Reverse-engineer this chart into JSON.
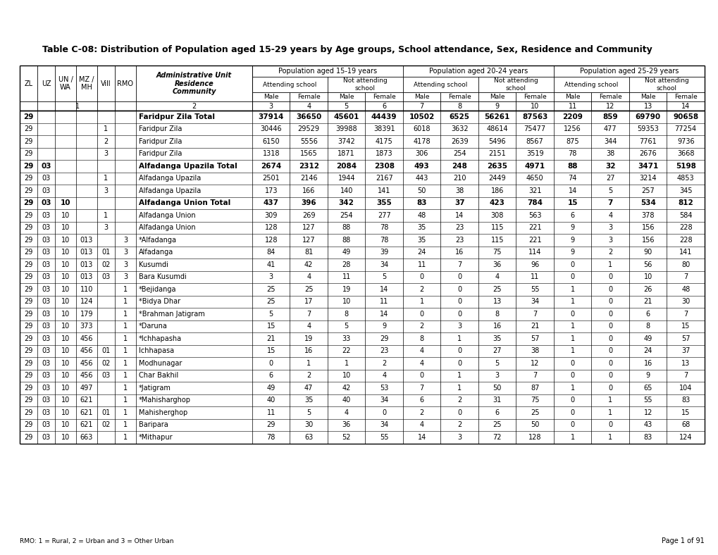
{
  "title": "Table C-08: Distribution of Population aged 15-29 years by Age groups, School attendance, Sex, Residence and Community",
  "footer_left": "RMO: 1 = Rural, 2 = Urban and 3 = Other Urban",
  "footer_right": "Page 1 of 91",
  "age_groups": [
    "Population aged 15-19 years",
    "Population aged 20-24 years",
    "Population aged 25-29 years"
  ],
  "col_numbers": [
    "3",
    "4",
    "5",
    "6",
    "7",
    "8",
    "9",
    "10",
    "11",
    "12",
    "13",
    "14"
  ],
  "rows": [
    {
      "zl": "29",
      "uz": "",
      "un": "",
      "mz": "",
      "vi": "",
      "rmo": "",
      "name": "Faridpur Zila Total",
      "bold": true,
      "data": [
        "37914",
        "36650",
        "45601",
        "44439",
        "10502",
        "6525",
        "56261",
        "87563",
        "2209",
        "859",
        "69790",
        "90658"
      ]
    },
    {
      "zl": "29",
      "uz": "",
      "un": "",
      "mz": "",
      "vi": "1",
      "rmo": "",
      "name": "Faridpur Zila",
      "bold": false,
      "data": [
        "30446",
        "29529",
        "39988",
        "38391",
        "6018",
        "3632",
        "48614",
        "75477",
        "1256",
        "477",
        "59353",
        "77254"
      ]
    },
    {
      "zl": "29",
      "uz": "",
      "un": "",
      "mz": "",
      "vi": "2",
      "rmo": "",
      "name": "Faridpur Zila",
      "bold": false,
      "data": [
        "6150",
        "5556",
        "3742",
        "4175",
        "4178",
        "2639",
        "5496",
        "8567",
        "875",
        "344",
        "7761",
        "9736"
      ]
    },
    {
      "zl": "29",
      "uz": "",
      "un": "",
      "mz": "",
      "vi": "3",
      "rmo": "",
      "name": "Faridpur Zila",
      "bold": false,
      "data": [
        "1318",
        "1565",
        "1871",
        "1873",
        "306",
        "254",
        "2151",
        "3519",
        "78",
        "38",
        "2676",
        "3668"
      ]
    },
    {
      "zl": "29",
      "uz": "03",
      "un": "",
      "mz": "",
      "vi": "",
      "rmo": "",
      "name": "Alfadanga Upazila Total",
      "bold": true,
      "data": [
        "2674",
        "2312",
        "2084",
        "2308",
        "493",
        "248",
        "2635",
        "4971",
        "88",
        "32",
        "3471",
        "5198"
      ]
    },
    {
      "zl": "29",
      "uz": "03",
      "un": "",
      "mz": "",
      "vi": "1",
      "rmo": "",
      "name": "Alfadanga Upazila",
      "bold": false,
      "data": [
        "2501",
        "2146",
        "1944",
        "2167",
        "443",
        "210",
        "2449",
        "4650",
        "74",
        "27",
        "3214",
        "4853"
      ]
    },
    {
      "zl": "29",
      "uz": "03",
      "un": "",
      "mz": "",
      "vi": "3",
      "rmo": "",
      "name": "Alfadanga Upazila",
      "bold": false,
      "data": [
        "173",
        "166",
        "140",
        "141",
        "50",
        "38",
        "186",
        "321",
        "14",
        "5",
        "257",
        "345"
      ]
    },
    {
      "zl": "29",
      "uz": "03",
      "un": "10",
      "mz": "",
      "vi": "",
      "rmo": "",
      "name": "Alfadanga Union Total",
      "bold": true,
      "data": [
        "437",
        "396",
        "342",
        "355",
        "83",
        "37",
        "423",
        "784",
        "15",
        "7",
        "534",
        "812"
      ]
    },
    {
      "zl": "29",
      "uz": "03",
      "un": "10",
      "mz": "",
      "vi": "1",
      "rmo": "",
      "name": "Alfadanga Union",
      "bold": false,
      "data": [
        "309",
        "269",
        "254",
        "277",
        "48",
        "14",
        "308",
        "563",
        "6",
        "4",
        "378",
        "584"
      ]
    },
    {
      "zl": "29",
      "uz": "03",
      "un": "10",
      "mz": "",
      "vi": "3",
      "rmo": "",
      "name": "Alfadanga Union",
      "bold": false,
      "data": [
        "128",
        "127",
        "88",
        "78",
        "35",
        "23",
        "115",
        "221",
        "9",
        "3",
        "156",
        "228"
      ]
    },
    {
      "zl": "29",
      "uz": "03",
      "un": "10",
      "mz": "013",
      "vi": "",
      "rmo": "3",
      "name": "*Alfadanga",
      "bold": false,
      "data": [
        "128",
        "127",
        "88",
        "78",
        "35",
        "23",
        "115",
        "221",
        "9",
        "3",
        "156",
        "228"
      ]
    },
    {
      "zl": "29",
      "uz": "03",
      "un": "10",
      "mz": "013",
      "vi": "01",
      "rmo": "3",
      "name": "Alfadanga",
      "bold": false,
      "data": [
        "84",
        "81",
        "49",
        "39",
        "24",
        "16",
        "75",
        "114",
        "9",
        "2",
        "90",
        "141"
      ]
    },
    {
      "zl": "29",
      "uz": "03",
      "un": "10",
      "mz": "013",
      "vi": "02",
      "rmo": "3",
      "name": "Kusumdi",
      "bold": false,
      "data": [
        "41",
        "42",
        "28",
        "34",
        "11",
        "7",
        "36",
        "96",
        "0",
        "1",
        "56",
        "80"
      ]
    },
    {
      "zl": "29",
      "uz": "03",
      "un": "10",
      "mz": "013",
      "vi": "03",
      "rmo": "3",
      "name": "Bara Kusumdi",
      "bold": false,
      "data": [
        "3",
        "4",
        "11",
        "5",
        "0",
        "0",
        "4",
        "11",
        "0",
        "0",
        "10",
        "7"
      ]
    },
    {
      "zl": "29",
      "uz": "03",
      "un": "10",
      "mz": "110",
      "vi": "",
      "rmo": "1",
      "name": "*Bejidanga",
      "bold": false,
      "data": [
        "25",
        "25",
        "19",
        "14",
        "2",
        "0",
        "25",
        "55",
        "1",
        "0",
        "26",
        "48"
      ]
    },
    {
      "zl": "29",
      "uz": "03",
      "un": "10",
      "mz": "124",
      "vi": "",
      "rmo": "1",
      "name": "*Bidya Dhar",
      "bold": false,
      "data": [
        "25",
        "17",
        "10",
        "11",
        "1",
        "0",
        "13",
        "34",
        "1",
        "0",
        "21",
        "30"
      ]
    },
    {
      "zl": "29",
      "uz": "03",
      "un": "10",
      "mz": "179",
      "vi": "",
      "rmo": "1",
      "name": "*Brahman Jatigram",
      "bold": false,
      "data": [
        "5",
        "7",
        "8",
        "14",
        "0",
        "0",
        "8",
        "7",
        "0",
        "0",
        "6",
        "7"
      ]
    },
    {
      "zl": "29",
      "uz": "03",
      "un": "10",
      "mz": "373",
      "vi": "",
      "rmo": "1",
      "name": "*Daruna",
      "bold": false,
      "data": [
        "15",
        "4",
        "5",
        "9",
        "2",
        "3",
        "16",
        "21",
        "1",
        "0",
        "8",
        "15"
      ]
    },
    {
      "zl": "29",
      "uz": "03",
      "un": "10",
      "mz": "456",
      "vi": "",
      "rmo": "1",
      "name": "*Ichhapasha",
      "bold": false,
      "data": [
        "21",
        "19",
        "33",
        "29",
        "8",
        "1",
        "35",
        "57",
        "1",
        "0",
        "49",
        "57"
      ]
    },
    {
      "zl": "29",
      "uz": "03",
      "un": "10",
      "mz": "456",
      "vi": "01",
      "rmo": "1",
      "name": "Ichhapasa",
      "bold": false,
      "data": [
        "15",
        "16",
        "22",
        "23",
        "4",
        "0",
        "27",
        "38",
        "1",
        "0",
        "24",
        "37"
      ]
    },
    {
      "zl": "29",
      "uz": "03",
      "un": "10",
      "mz": "456",
      "vi": "02",
      "rmo": "1",
      "name": "Modhunagar",
      "bold": false,
      "data": [
        "0",
        "1",
        "1",
        "2",
        "4",
        "0",
        "5",
        "12",
        "0",
        "0",
        "16",
        "13"
      ]
    },
    {
      "zl": "29",
      "uz": "03",
      "un": "10",
      "mz": "456",
      "vi": "03",
      "rmo": "1",
      "name": "Char Bakhil",
      "bold": false,
      "data": [
        "6",
        "2",
        "10",
        "4",
        "0",
        "1",
        "3",
        "7",
        "0",
        "0",
        "9",
        "7"
      ]
    },
    {
      "zl": "29",
      "uz": "03",
      "un": "10",
      "mz": "497",
      "vi": "",
      "rmo": "1",
      "name": "*Jatigram",
      "bold": false,
      "data": [
        "49",
        "47",
        "42",
        "53",
        "7",
        "1",
        "50",
        "87",
        "1",
        "0",
        "65",
        "104"
      ]
    },
    {
      "zl": "29",
      "uz": "03",
      "un": "10",
      "mz": "621",
      "vi": "",
      "rmo": "1",
      "name": "*Mahisharghop",
      "bold": false,
      "data": [
        "40",
        "35",
        "40",
        "34",
        "6",
        "2",
        "31",
        "75",
        "0",
        "1",
        "55",
        "83"
      ]
    },
    {
      "zl": "29",
      "uz": "03",
      "un": "10",
      "mz": "621",
      "vi": "01",
      "rmo": "1",
      "name": "Mahisherghop",
      "bold": false,
      "data": [
        "11",
        "5",
        "4",
        "0",
        "2",
        "0",
        "6",
        "25",
        "0",
        "1",
        "12",
        "15"
      ]
    },
    {
      "zl": "29",
      "uz": "03",
      "un": "10",
      "mz": "621",
      "vi": "02",
      "rmo": "1",
      "name": "Baripara",
      "bold": false,
      "data": [
        "29",
        "30",
        "36",
        "34",
        "4",
        "2",
        "25",
        "50",
        "0",
        "0",
        "43",
        "68"
      ]
    },
    {
      "zl": "29",
      "uz": "03",
      "un": "10",
      "mz": "663",
      "vi": "",
      "rmo": "1",
      "name": "*Mithapur",
      "bold": false,
      "data": [
        "78",
        "63",
        "52",
        "55",
        "14",
        "3",
        "72",
        "128",
        "1",
        "1",
        "83",
        "124"
      ]
    }
  ]
}
